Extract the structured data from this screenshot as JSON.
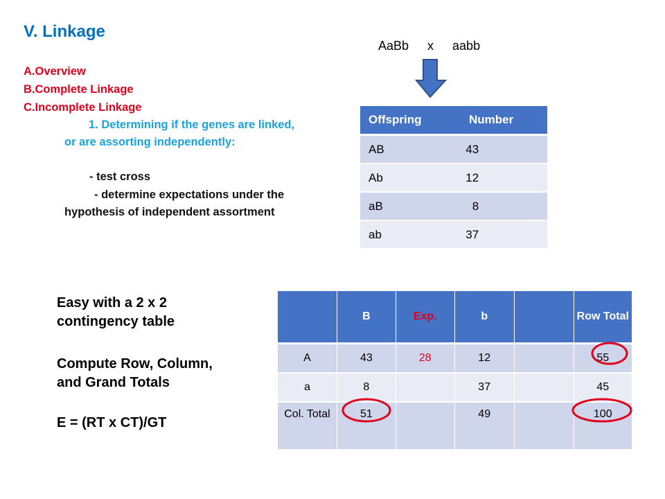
{
  "title": "V. Linkage",
  "outline": [
    "A.Overview",
    "B.Complete Linkage",
    "C.Incomplete Linkage"
  ],
  "point1": [
    "1. Determining if the genes are linked,",
    "or are assorting independently:"
  ],
  "steps": [
    "- test cross",
    "- determine expectations under the",
    "hypothesis of independent assortment"
  ],
  "cross": "AaBb   x   aabb",
  "offspring_table": {
    "headers": [
      "Offspring",
      " Number"
    ],
    "rows": [
      [
        "AB",
        "43"
      ],
      [
        "Ab",
        "12"
      ],
      [
        "aB",
        "  8"
      ],
      [
        "ab",
        "37"
      ]
    ]
  },
  "side_text": [
    "Easy with a 2 x 2",
    "contingency table",
    "Compute Row, Column,",
    "and Grand Totals",
    "E = (RT x CT)/GT"
  ],
  "contingency_table": {
    "headers": [
      "",
      "B",
      "Exp.",
      "b",
      "",
      "Row Total"
    ],
    "rows": [
      [
        "A",
        "43",
        "28",
        "12",
        "",
        "55"
      ],
      [
        "a",
        "8",
        "",
        "37",
        "",
        "45"
      ],
      [
        "Col. Total",
        "51",
        "",
        "49",
        "",
        "100"
      ]
    ]
  },
  "colors": {
    "title": "#0070c0",
    "outline": "#e0001b",
    "subpoint": "#1ba1dc",
    "header_fill": "#4472c4",
    "row_dark": "#cfd5ea",
    "row_light": "#e9ebf5",
    "circle": "#e0001b",
    "arrow": "#4472c4"
  }
}
